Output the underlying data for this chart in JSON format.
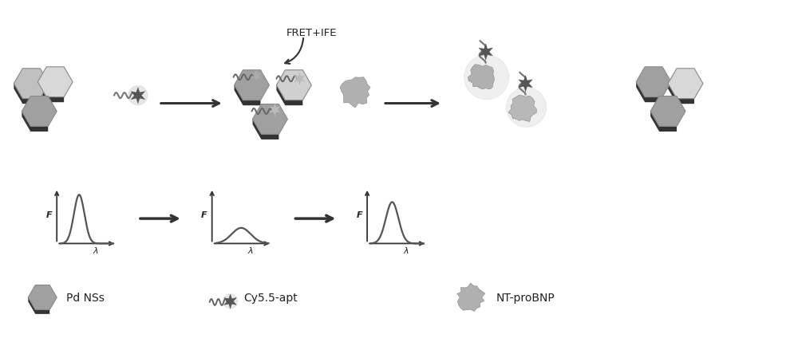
{
  "bg_color": "#ffffff",
  "text_color": "#222222",
  "fret_label": "FRET+IFE",
  "label_pd": "Pd NSs",
  "label_cy": "Cy5.5-apt",
  "label_nt": "NT-proBNP",
  "label_f": "F",
  "label_lambda": "λ",
  "hex_light": "#c0c0c0",
  "hex_dark": "#333333",
  "hex_mid": "#a0a0a0",
  "star_dark": "#555555",
  "star_light": "#aaaaaa",
  "graph_color": "#555555",
  "arrow_color": "#333333",
  "blob_color": "#a0a0a0",
  "coil_color": "#777777"
}
